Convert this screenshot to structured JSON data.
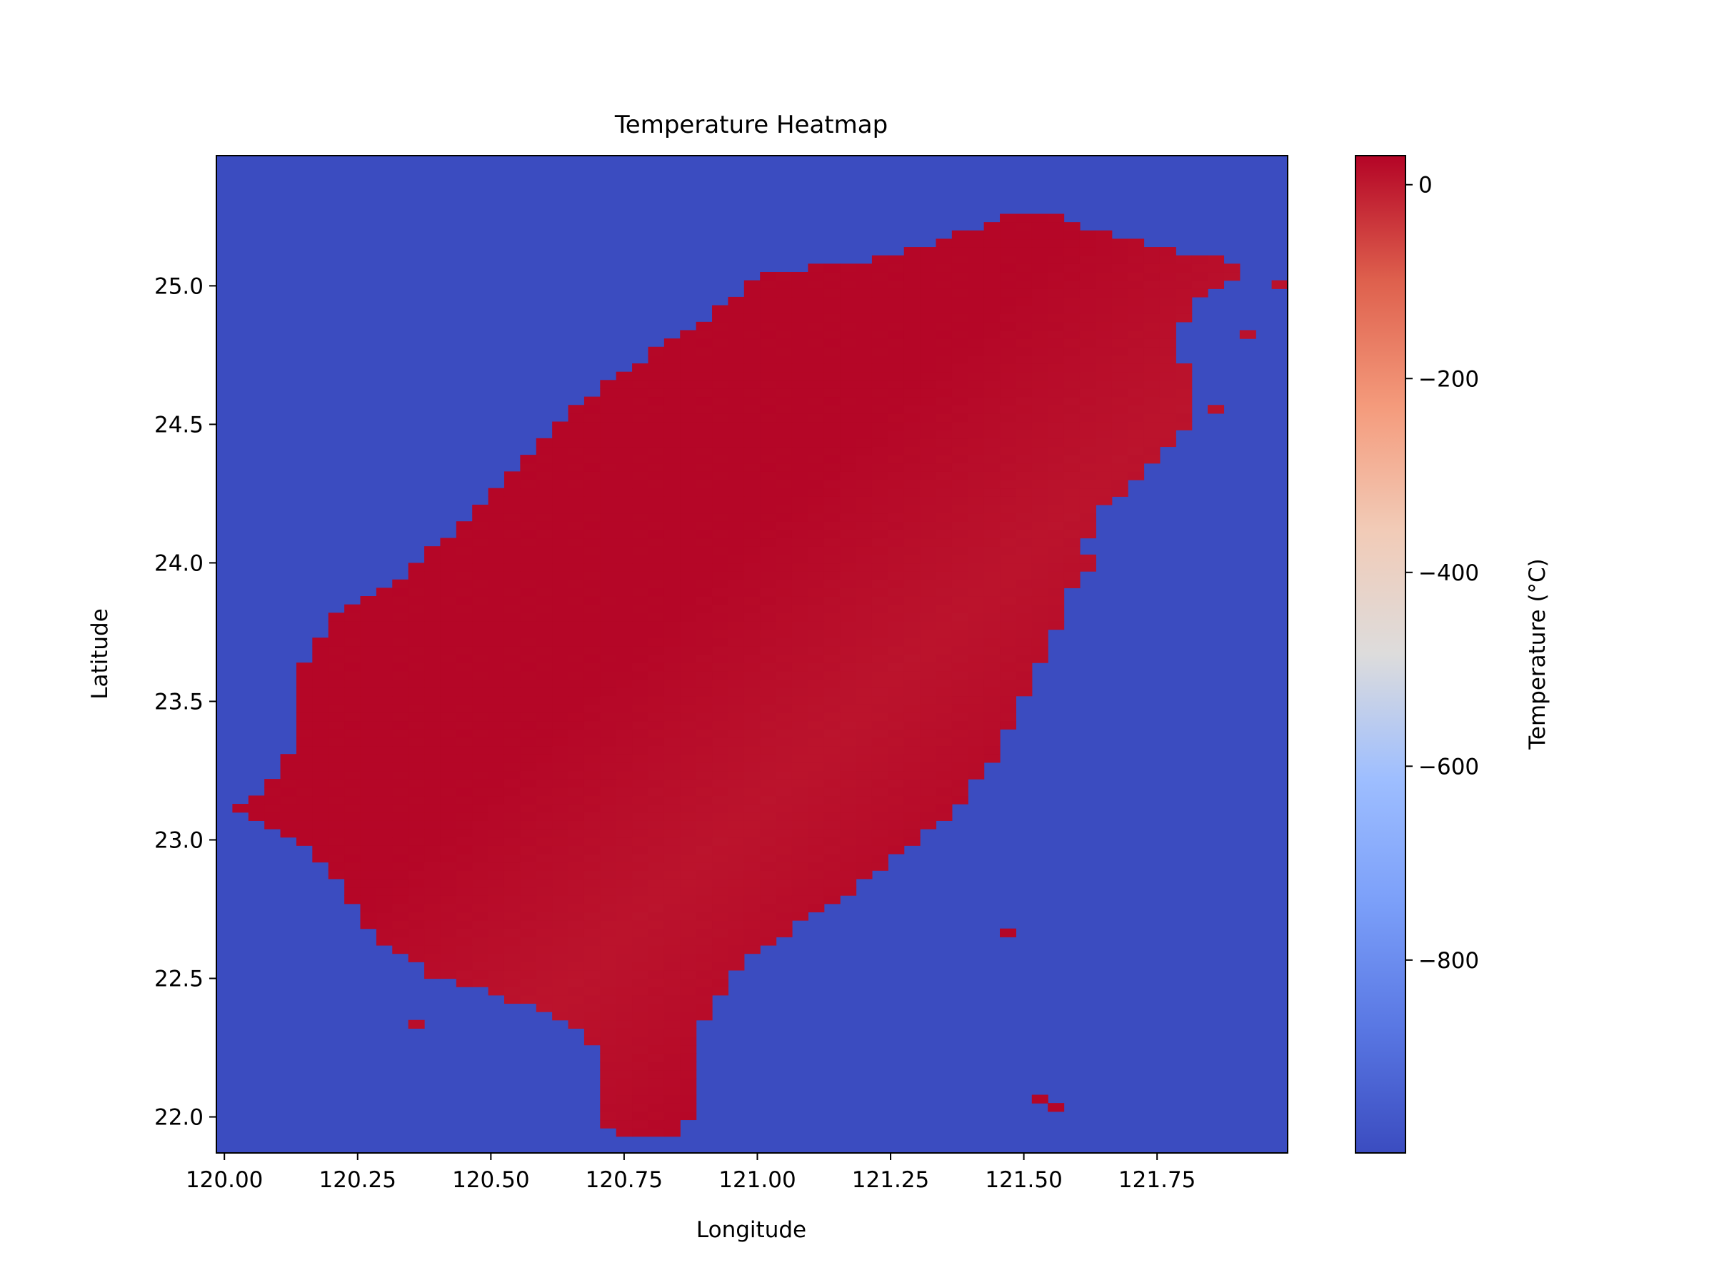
{
  "chart_data": {
    "type": "heatmap",
    "title": "Temperature Heatmap",
    "xlabel": "Longitude",
    "ylabel": "Latitude",
    "colorbar_label": "Temperature (°C)",
    "colormap": "coolwarm",
    "xlim": [
      119.985,
      121.995
    ],
    "ylim": [
      21.87,
      25.47
    ],
    "x_ticks": [
      120.0,
      120.25,
      120.5,
      120.75,
      121.0,
      121.25,
      121.5,
      121.75
    ],
    "x_tick_labels": [
      "120.00",
      "120.25",
      "120.50",
      "120.75",
      "121.00",
      "121.25",
      "121.50",
      "121.75"
    ],
    "y_ticks": [
      22.0,
      22.5,
      23.0,
      23.5,
      24.0,
      24.5,
      25.0
    ],
    "y_tick_labels": [
      "22.0",
      "22.5",
      "23.0",
      "23.5",
      "24.0",
      "24.5",
      "25.0"
    ],
    "colorbar_range": [
      -999,
      30
    ],
    "colorbar_ticks": [
      0,
      -200,
      -400,
      -600,
      -800
    ],
    "colorbar_tick_labels": [
      "0",
      "−200",
      "−400",
      "−600",
      "−800"
    ],
    "grid": false,
    "nodata_value": -999,
    "nodata_color": "#3b4cc0",
    "land_value_range": [
      5,
      28
    ],
    "land_outline": [
      [
        25.27,
        121.5
      ],
      [
        25.26,
        121.57
      ],
      [
        25.2,
        121.63
      ],
      [
        25.15,
        121.73
      ],
      [
        25.12,
        121.81
      ],
      [
        25.1,
        121.88
      ],
      [
        25.05,
        121.92
      ],
      [
        24.99,
        121.85
      ],
      [
        24.88,
        121.8
      ],
      [
        24.72,
        121.8
      ],
      [
        24.55,
        121.83
      ],
      [
        24.45,
        121.78
      ],
      [
        24.3,
        121.72
      ],
      [
        24.2,
        121.65
      ],
      [
        24.05,
        121.61
      ],
      [
        23.85,
        121.58
      ],
      [
        23.65,
        121.53
      ],
      [
        23.45,
        121.48
      ],
      [
        23.25,
        121.43
      ],
      [
        23.1,
        121.36
      ],
      [
        22.95,
        121.27
      ],
      [
        22.82,
        121.18
      ],
      [
        22.7,
        121.08
      ],
      [
        22.57,
        120.98
      ],
      [
        22.43,
        120.92
      ],
      [
        22.28,
        120.88
      ],
      [
        22.0,
        120.88
      ],
      [
        21.92,
        120.83
      ],
      [
        21.95,
        120.71
      ],
      [
        22.25,
        120.71
      ],
      [
        22.38,
        120.6
      ],
      [
        22.45,
        120.5
      ],
      [
        22.52,
        120.38
      ],
      [
        22.65,
        120.28
      ],
      [
        22.8,
        120.23
      ],
      [
        22.95,
        120.17
      ],
      [
        23.05,
        120.08
      ],
      [
        23.1,
        120.02
      ],
      [
        23.2,
        120.08
      ],
      [
        23.35,
        120.13
      ],
      [
        23.65,
        120.15
      ],
      [
        23.82,
        120.21
      ],
      [
        23.95,
        120.33
      ],
      [
        24.1,
        120.42
      ],
      [
        24.3,
        120.52
      ],
      [
        24.5,
        120.62
      ],
      [
        24.7,
        120.75
      ],
      [
        24.85,
        120.88
      ],
      [
        25.05,
        121.02
      ],
      [
        25.1,
        121.25
      ],
      [
        25.2,
        121.4
      ]
    ],
    "isolated_land_cells": [
      [
        22.66,
        121.47
      ],
      [
        22.33,
        120.36
      ],
      [
        22.06,
        121.52
      ],
      [
        22.03,
        121.55
      ],
      [
        24.82,
        121.93
      ],
      [
        24.56,
        121.85
      ],
      [
        24.0,
        121.62
      ],
      [
        25.01,
        121.97
      ]
    ]
  }
}
